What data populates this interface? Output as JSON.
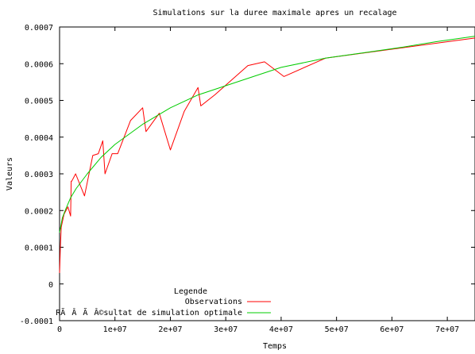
{
  "chart_data": {
    "type": "line",
    "title": "Simulations sur la duree maximale apres un recalage",
    "xlabel": "Temps",
    "ylabel": "Valeurs",
    "xlim": [
      0,
      75000000
    ],
    "ylim": [
      -0.0001,
      0.0007
    ],
    "x_ticks": [
      0,
      10000000,
      20000000,
      30000000,
      40000000,
      50000000,
      60000000,
      70000000
    ],
    "x_tick_labels": [
      "0",
      "1e+07",
      "2e+07",
      "3e+07",
      "4e+07",
      "5e+07",
      "6e+07",
      "7e+07"
    ],
    "y_ticks": [
      -0.0001,
      0,
      0.0001,
      0.0002,
      0.0003,
      0.0004,
      0.0005,
      0.0006,
      0.0007
    ],
    "y_tick_labels": [
      "-0.0001",
      "0",
      "0.0001",
      "0.0002",
      "0.0003",
      "0.0004",
      "0.0005",
      "0.0006",
      "0.0007"
    ],
    "grid": false,
    "legend": {
      "title": "Legende",
      "placement": "bottom-left"
    },
    "series": [
      {
        "name": "Observations",
        "color": "#ff0000",
        "x": [
          0,
          150000,
          300000,
          800000,
          1500000,
          2000000,
          2100000,
          2200000,
          2900000,
          4500000,
          6000000,
          7000000,
          7800000,
          8200000,
          9500000,
          10500000,
          12800000,
          15000000,
          15600000,
          18000000,
          20000000,
          22500000,
          25000000,
          25500000,
          28000000,
          34000000,
          37000000,
          40500000,
          48000000,
          75000000
        ],
        "y": [
          3e-05,
          0.0001,
          0.000155,
          0.00019,
          0.00021,
          0.000185,
          0.00028,
          0.00028,
          0.0003,
          0.00024,
          0.00035,
          0.000355,
          0.00039,
          0.0003,
          0.000355,
          0.000355,
          0.000445,
          0.00048,
          0.000415,
          0.000465,
          0.000365,
          0.00047,
          0.000535,
          0.000485,
          0.000515,
          0.000595,
          0.000605,
          0.000565,
          0.000615,
          0.00067
        ]
      },
      {
        "name": "RÃÂÃÂ©sultat de simulation optimale",
        "color": "#00cc00",
        "x": [
          0,
          500000,
          1000000,
          2000000,
          3000000,
          5000000,
          7500000,
          10000000,
          15000000,
          20000000,
          25000000,
          30000000,
          35000000,
          40000000,
          48000000,
          55000000,
          62000000,
          68000000,
          75000000
        ],
        "y": [
          0.00014,
          0.00018,
          0.0002,
          0.000235,
          0.00026,
          0.0003,
          0.000345,
          0.00038,
          0.000435,
          0.00048,
          0.000515,
          0.00054,
          0.000565,
          0.00059,
          0.000615,
          0.00063,
          0.000645,
          0.00066,
          0.000675
        ]
      }
    ]
  }
}
